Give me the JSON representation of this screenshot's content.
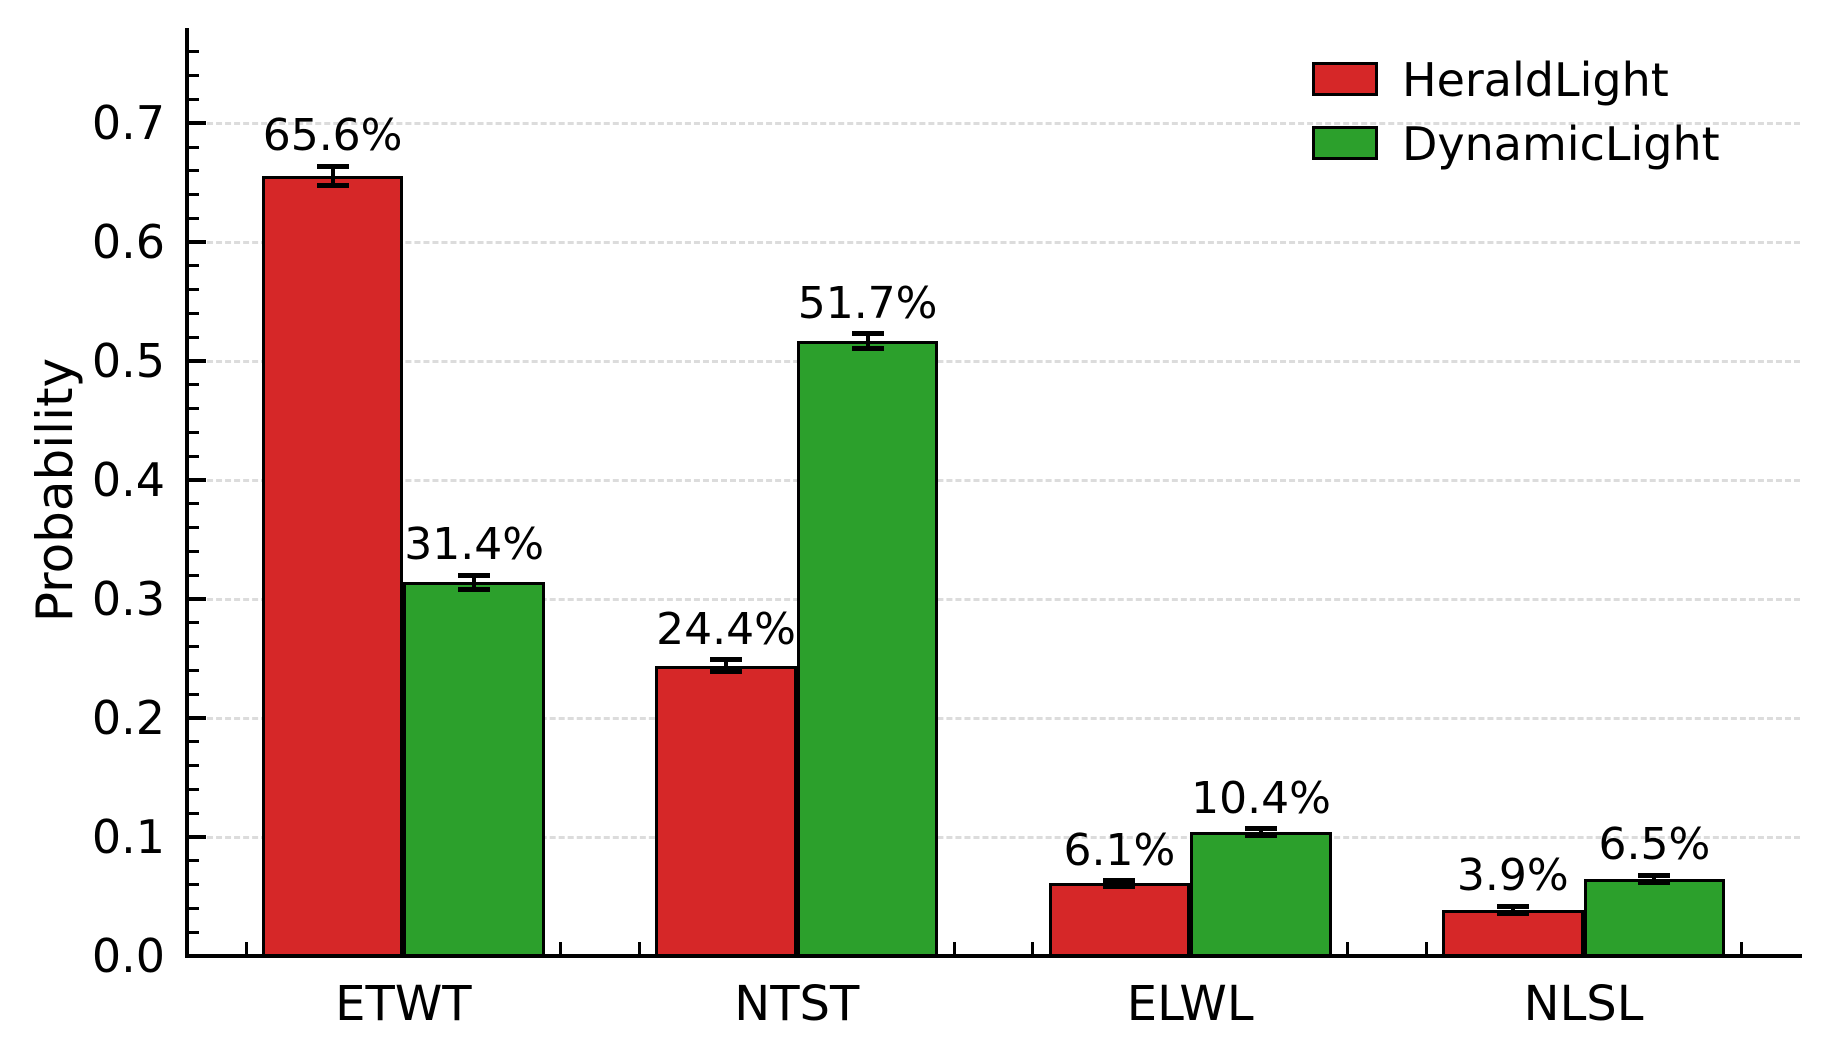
{
  "chart_data": {
    "type": "bar",
    "title": "",
    "xlabel": "",
    "ylabel": "Probability",
    "categories": [
      "ETWT",
      "NTST",
      "ELWL",
      "NLSL"
    ],
    "series": [
      {
        "name": "HeraldLight",
        "color": "#d62728",
        "values": [
          0.656,
          0.244,
          0.061,
          0.039
        ],
        "value_labels": [
          "65.6%",
          "24.4%",
          "6.1%",
          "3.9%"
        ],
        "errors": [
          0.008,
          0.005,
          0.0025,
          0.003
        ]
      },
      {
        "name": "DynamicLight",
        "color": "#2ca02c",
        "values": [
          0.314,
          0.517,
          0.104,
          0.065
        ],
        "value_labels": [
          "31.4%",
          "51.7%",
          "10.4%",
          "6.5%"
        ],
        "errors": [
          0.006,
          0.006,
          0.003,
          0.003
        ]
      }
    ],
    "ylim": [
      0,
      0.78
    ],
    "xlim": [
      -0.55,
      3.55
    ],
    "yticks": [
      0,
      0.1,
      0.2,
      0.3,
      0.4,
      0.5,
      0.6,
      0.7
    ],
    "ytick_labels": [
      "0.0",
      "0.1",
      "0.2",
      "0.3",
      "0.4",
      "0.5",
      "0.6",
      "0.7"
    ],
    "y_minor_step": 0.02,
    "x_minor_step": 0.2,
    "bar_width": 0.36,
    "grid": "horizontal dashed lines at major y ticks",
    "grid_color": "#dcdcdc",
    "axis_color": "#000000",
    "bar_edge_color": "#000000",
    "error_bar_color": "#000000",
    "legend_position": "upper right"
  }
}
